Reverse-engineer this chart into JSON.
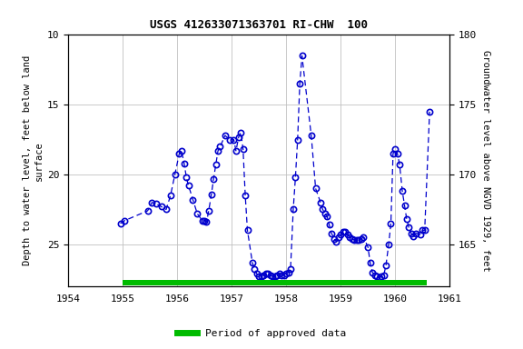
{
  "title": "USGS 412633071363701 RI-CHW  100",
  "ylabel_left": "Depth to water level, feet below land\nsurface",
  "ylabel_right": "Groundwater level above NGVD 1929, feet",
  "xlim": [
    1954,
    1961
  ],
  "ylim_left_top": 10,
  "ylim_left_bottom": 28,
  "yticks_left": [
    10,
    15,
    20,
    25
  ],
  "yticks_right": [
    165,
    170,
    175,
    180
  ],
  "xticks": [
    1954,
    1955,
    1956,
    1957,
    1958,
    1959,
    1960,
    1961
  ],
  "line_color": "#0000cc",
  "marker_color": "#0000cc",
  "bg_color": "#ffffff",
  "grid_color": "#c0c0c0",
  "approved_bar_start": 1955.0,
  "approved_bar_end": 1960.58,
  "approved_bar_color": "#00bb00",
  "land_surface_datum": 190.0,
  "data_x": [
    1954.96,
    1955.04,
    1955.46,
    1955.54,
    1955.62,
    1955.71,
    1955.8,
    1955.88,
    1955.96,
    1956.04,
    1956.08,
    1956.13,
    1956.17,
    1956.21,
    1956.29,
    1956.37,
    1956.46,
    1956.5,
    1956.54,
    1956.58,
    1956.63,
    1956.67,
    1956.71,
    1956.75,
    1956.79,
    1956.88,
    1956.96,
    1957.04,
    1957.08,
    1957.13,
    1957.17,
    1957.21,
    1957.25,
    1957.29,
    1957.38,
    1957.42,
    1957.46,
    1957.5,
    1957.54,
    1957.58,
    1957.63,
    1957.67,
    1957.71,
    1957.75,
    1957.79,
    1957.83,
    1957.88,
    1957.92,
    1957.96,
    1958.0,
    1958.04,
    1958.08,
    1958.13,
    1958.17,
    1958.21,
    1958.25,
    1958.29,
    1958.46,
    1958.54,
    1958.63,
    1958.67,
    1958.71,
    1958.75,
    1958.79,
    1958.83,
    1958.88,
    1958.92,
    1958.96,
    1959.0,
    1959.04,
    1959.08,
    1959.13,
    1959.17,
    1959.21,
    1959.25,
    1959.29,
    1959.33,
    1959.38,
    1959.42,
    1959.5,
    1959.54,
    1959.58,
    1959.63,
    1959.67,
    1959.71,
    1959.75,
    1959.79,
    1959.83,
    1959.88,
    1959.92,
    1959.96,
    1960.0,
    1960.04,
    1960.08,
    1960.13,
    1960.17,
    1960.21,
    1960.25,
    1960.29,
    1960.33,
    1960.38,
    1960.46,
    1960.5,
    1960.54,
    1960.63
  ],
  "data_y": [
    23.5,
    23.3,
    22.6,
    22.0,
    22.1,
    22.3,
    22.5,
    21.5,
    20.0,
    18.5,
    18.3,
    19.2,
    20.2,
    20.8,
    21.8,
    22.8,
    23.3,
    23.3,
    23.4,
    22.6,
    21.4,
    20.3,
    19.3,
    18.3,
    18.0,
    17.2,
    17.5,
    17.5,
    18.3,
    17.3,
    17.0,
    18.2,
    21.5,
    24.0,
    26.3,
    26.8,
    27.1,
    27.3,
    27.3,
    27.2,
    27.1,
    27.1,
    27.2,
    27.3,
    27.3,
    27.2,
    27.1,
    27.2,
    27.2,
    27.1,
    27.0,
    26.8,
    22.5,
    20.2,
    17.5,
    13.5,
    11.5,
    17.2,
    21.0,
    22.0,
    22.5,
    22.8,
    23.0,
    23.6,
    24.2,
    24.6,
    24.8,
    24.5,
    24.3,
    24.1,
    24.1,
    24.3,
    24.5,
    24.6,
    24.7,
    24.7,
    24.7,
    24.6,
    24.5,
    25.2,
    26.3,
    27.0,
    27.2,
    27.3,
    27.4,
    27.3,
    27.2,
    26.5,
    25.0,
    23.5,
    18.5,
    18.2,
    18.5,
    19.3,
    21.2,
    22.2,
    23.2,
    23.8,
    24.2,
    24.4,
    24.2,
    24.3,
    24.0,
    24.0,
    15.5
  ]
}
